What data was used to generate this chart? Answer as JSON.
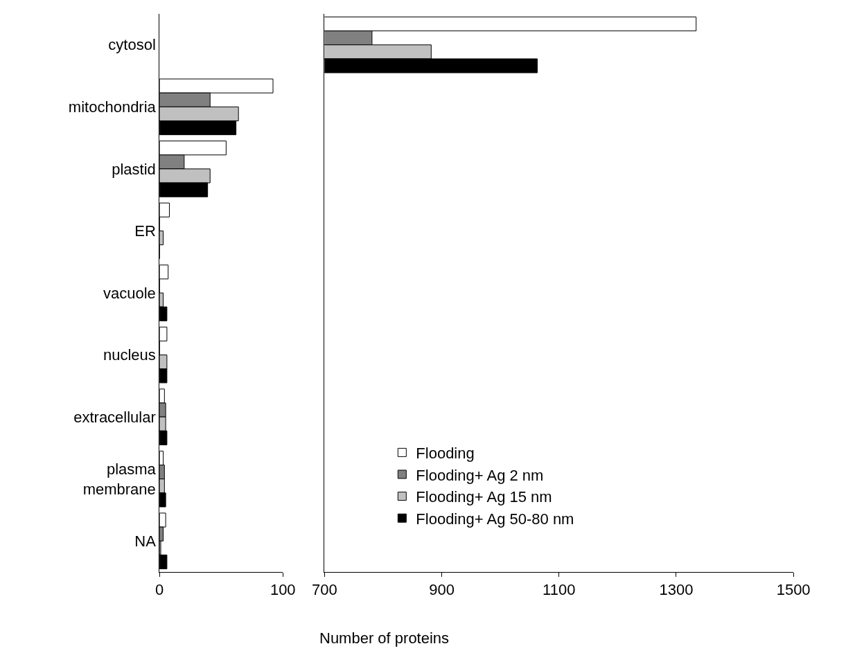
{
  "chart_data": [
    {
      "type": "bar",
      "orientation": "horizontal",
      "categories": [
        "cytosol",
        "mitochondria",
        "plastid",
        "ER",
        "vacuole",
        "nucleus",
        "extracellular",
        "plasma membrane",
        "NA"
      ],
      "series": [
        {
          "color": "#ffffff",
          "values": [
            null,
            92,
            54,
            8,
            7,
            6,
            4,
            3,
            5
          ]
        },
        {
          "color": "#808080",
          "values": [
            null,
            41,
            20,
            0,
            0,
            0,
            5,
            4,
            3
          ]
        },
        {
          "color": "#c0c0c0",
          "values": [
            null,
            64,
            41,
            3,
            3,
            6,
            5,
            4,
            1
          ]
        },
        {
          "color": "#000000",
          "values": [
            null,
            62,
            39,
            0,
            6,
            6,
            6,
            5,
            6
          ]
        }
      ],
      "xlim": [
        0,
        100
      ],
      "xticks": [
        0,
        100
      ],
      "xlabel": "Number of proteins"
    },
    {
      "type": "bar",
      "orientation": "horizontal",
      "categories": [
        null,
        null,
        null,
        null,
        null,
        null,
        null,
        null,
        null
      ],
      "series": [
        {
          "name": "Flooding",
          "color": "#ffffff",
          "values": [
            1334,
            null,
            null,
            null,
            null,
            null,
            null,
            null,
            null
          ]
        },
        {
          "name": "Flooding+ Ag 2 nm",
          "color": "#808080",
          "values": [
            781,
            null,
            null,
            null,
            null,
            null,
            null,
            null,
            null
          ]
        },
        {
          "name": "Flooding+ Ag 15 nm",
          "color": "#c0c0c0",
          "values": [
            882,
            null,
            null,
            null,
            null,
            null,
            null,
            null,
            null
          ]
        },
        {
          "name": "Flooding+ Ag 50-80 nm",
          "color": "#000000",
          "values": [
            1063,
            null,
            null,
            null,
            null,
            null,
            null,
            null,
            null
          ]
        }
      ],
      "xlim": [
        700,
        1500
      ],
      "xticks": [
        700,
        900,
        1100,
        1300,
        1500
      ],
      "tick_labels": "x",
      "legend": "bottom"
    }
  ]
}
